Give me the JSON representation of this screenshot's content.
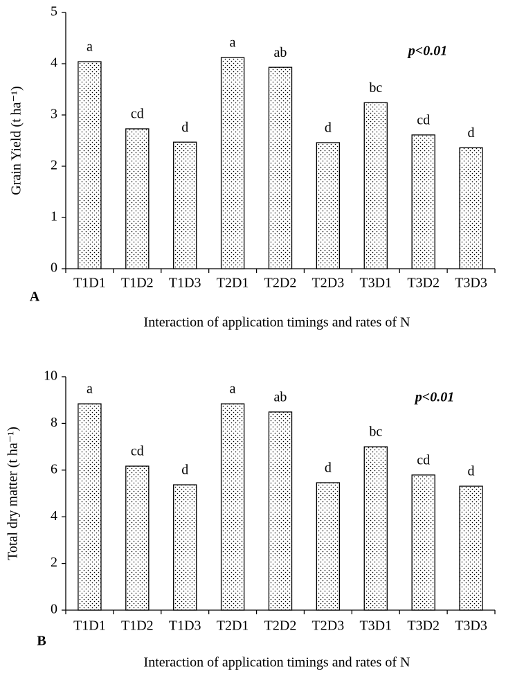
{
  "chart_data": [
    {
      "type": "bar",
      "panel": "A",
      "ylabel": "Grain Yield (t ha⁻¹)",
      "xlabel": "Interaction of application timings and rates of N",
      "annotation": "p<0.01",
      "categories": [
        "T1D1",
        "T1D2",
        "T1D3",
        "T2D1",
        "T2D2",
        "T2D3",
        "T3D1",
        "T3D2",
        "T3D3"
      ],
      "values": [
        4.04,
        2.73,
        2.47,
        4.12,
        3.93,
        2.46,
        3.24,
        2.61,
        2.36
      ],
      "letters": [
        "a",
        "cd",
        "d",
        "a",
        "ab",
        "d",
        "bc",
        "cd",
        "d"
      ],
      "ylim": [
        0,
        5
      ],
      "yticks": [
        0,
        1,
        2,
        3,
        4,
        5
      ],
      "color": "#ffffff"
    },
    {
      "type": "bar",
      "panel": "B",
      "ylabel": "Total dry matter (t ha⁻¹)",
      "xlabel": "Interaction of application timings and rates of N",
      "annotation": "p<0.01",
      "categories": [
        "T1D1",
        "T1D2",
        "T1D3",
        "T2D1",
        "T2D2",
        "T2D3",
        "T3D1",
        "T3D2",
        "T3D3"
      ],
      "values": [
        8.84,
        6.17,
        5.37,
        8.84,
        8.49,
        5.46,
        7.0,
        5.79,
        5.31
      ],
      "letters": [
        "a",
        "cd",
        "d",
        "a",
        "ab",
        "d",
        "bc",
        "cd",
        "d"
      ],
      "ylim": [
        0,
        10
      ],
      "yticks": [
        0,
        2,
        4,
        6,
        8,
        10
      ],
      "color": "#ffffff"
    }
  ]
}
